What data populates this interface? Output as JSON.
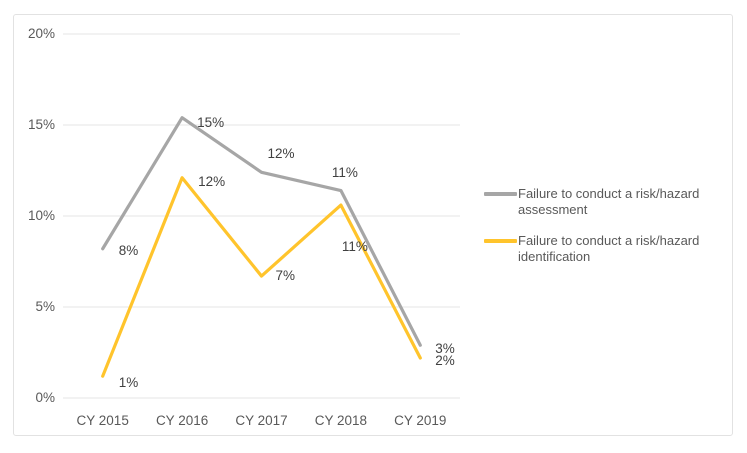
{
  "chart_data": {
    "type": "line",
    "title": "",
    "xlabel": "",
    "ylabel": "",
    "categories": [
      "CY 2015",
      "CY 2016",
      "CY 2017",
      "CY 2018",
      "CY 2019"
    ],
    "series": [
      {
        "name": "Failure to conduct a risk/hazard assessment",
        "color": "#A6A6A6",
        "values": [
          8.2,
          15.4,
          12.4,
          11.4,
          2.9
        ],
        "point_labels": [
          "8%",
          "15%",
          "12%",
          "11%",
          "3%"
        ]
      },
      {
        "name": "Failure to conduct a risk/hazard identification",
        "color": "#FFC42C",
        "values": [
          1.2,
          12.1,
          6.7,
          10.6,
          2.2
        ],
        "point_labels": [
          "1%",
          "12%",
          "7%",
          "11%",
          "2%"
        ]
      }
    ],
    "y_axis": {
      "min": 0,
      "max": 20,
      "step": 5,
      "ticks": [
        "0%",
        "5%",
        "10%",
        "15%",
        "20%"
      ]
    },
    "grid": "horizontal",
    "legend_position": "right"
  },
  "colors": {
    "gridline": "#E6E6E6",
    "axis_text": "#595959",
    "data_label_text": "#404040",
    "frame_border": "#E2E2E2",
    "background": "#FFFFFF"
  }
}
